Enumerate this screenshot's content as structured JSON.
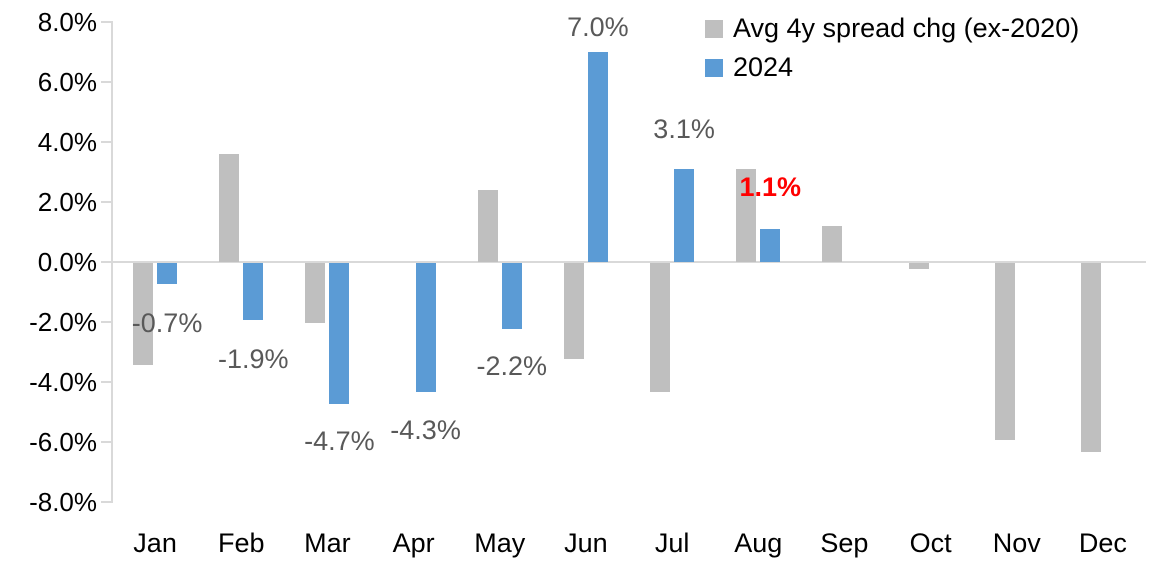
{
  "chart_data": {
    "type": "bar",
    "title": "",
    "xlabel": "",
    "ylabel": "",
    "categories": [
      "Jan",
      "Feb",
      "Mar",
      "Apr",
      "May",
      "Jun",
      "Jul",
      "Aug",
      "Sep",
      "Oct",
      "Nov",
      "Dec"
    ],
    "series": [
      {
        "name": "Avg 4y spread chg (ex-2020)",
        "color": "#BFBFBF",
        "values": [
          -3.4,
          3.6,
          -2.0,
          0.0,
          2.4,
          -3.2,
          -4.3,
          3.1,
          1.2,
          -0.2,
          -5.9,
          -6.3
        ]
      },
      {
        "name": "2024",
        "color": "#5B9BD5",
        "values": [
          -0.7,
          -1.9,
          -4.7,
          -4.3,
          -2.2,
          7.0,
          3.1,
          1.1,
          null,
          null,
          null,
          null
        ]
      }
    ],
    "data_labels": [
      {
        "series": "2024",
        "month": "Jan",
        "text": "-0.7%",
        "color": "#595959",
        "bold": false,
        "offset_y": 40
      },
      {
        "series": "2024",
        "month": "Feb",
        "text": "-1.9%",
        "color": "#595959",
        "bold": false,
        "offset_y": 40
      },
      {
        "series": "2024",
        "month": "Mar",
        "text": "-4.7%",
        "color": "#595959",
        "bold": false,
        "offset_y": 38
      },
      {
        "series": "2024",
        "month": "Apr",
        "text": "-4.3%",
        "color": "#595959",
        "bold": false,
        "offset_y": 39
      },
      {
        "series": "2024",
        "month": "May",
        "text": "-2.2%",
        "color": "#595959",
        "bold": false,
        "offset_y": 38
      },
      {
        "series": "2024",
        "month": "Jun",
        "text": "7.0%",
        "color": "#595959",
        "bold": false,
        "offset_y": -25
      },
      {
        "series": "2024",
        "month": "Jul",
        "text": "3.1%",
        "color": "#595959",
        "bold": false,
        "offset_y": -40
      },
      {
        "series": "2024",
        "month": "Aug",
        "text": "1.1%",
        "color": "#FF0000",
        "bold": true,
        "offset_y": -42
      }
    ],
    "y_axis": {
      "min": -8,
      "max": 8,
      "step": 2,
      "tick_labels": [
        "8.0%",
        "6.0%",
        "4.0%",
        "2.0%",
        "0.0%",
        "-2.0%",
        "-4.0%",
        "-6.0%",
        "-8.0%"
      ],
      "format": "percent"
    },
    "legend": {
      "position": "top-right",
      "entries": [
        {
          "label": "Avg 4y spread chg (ex-2020)",
          "color": "#BFBFBF"
        },
        {
          "label": "2024",
          "color": "#5B9BD5"
        }
      ]
    },
    "grid": "zero-line-only",
    "axis_color": "#D9D9D9",
    "text_color": "#000000"
  }
}
